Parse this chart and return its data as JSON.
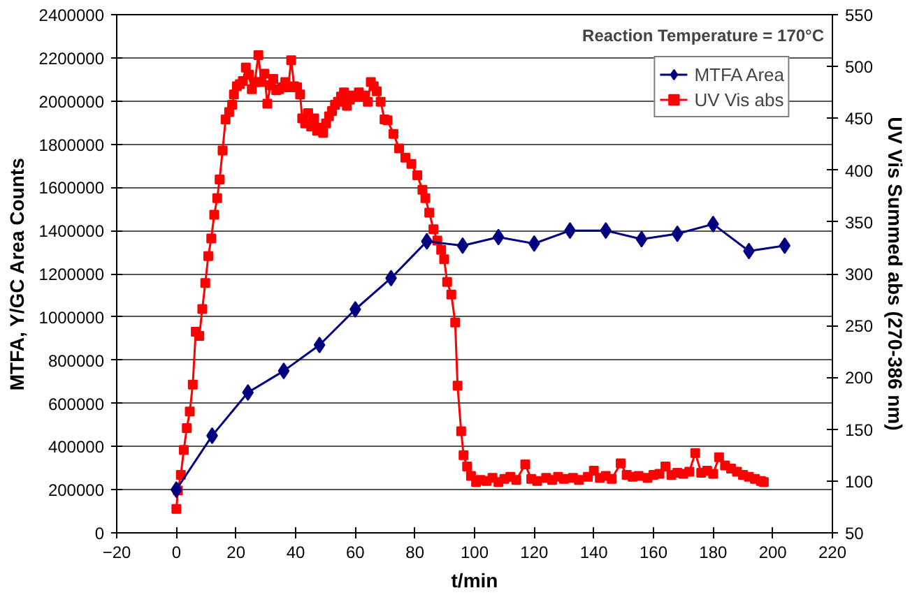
{
  "chart_data": {
    "type": "line",
    "xlabel": "t/min",
    "ylabel": "MTFA, Y/GC Area Counts",
    "y2label": "UV Vis Summed abs (270-386 nm)",
    "annotations": [
      "Reaction Temperature = 170°C"
    ],
    "xlim": [
      -20,
      220
    ],
    "xticks": [
      -20,
      0,
      20,
      40,
      60,
      80,
      100,
      120,
      140,
      160,
      180,
      200,
      220
    ],
    "ylim": [
      0,
      2400000
    ],
    "yticks": [
      0,
      200000,
      400000,
      600000,
      800000,
      1000000,
      1200000,
      1400000,
      1600000,
      1800000,
      2000000,
      2200000,
      2400000
    ],
    "y2lim": [
      50,
      550
    ],
    "y2ticks": [
      50,
      100,
      150,
      200,
      250,
      300,
      350,
      400,
      450,
      500,
      550
    ],
    "grid": "y",
    "legend": "top right",
    "series": [
      {
        "name": "MTFA Area",
        "color": "#000080",
        "marker": "diamond",
        "x": [
          0,
          12,
          24,
          36,
          48,
          60,
          72,
          84,
          96,
          108,
          120,
          132,
          144,
          156,
          168,
          180,
          192,
          204
        ],
        "values": [
          200000,
          450000,
          650000,
          750000,
          870000,
          1035000,
          1180000,
          1350000,
          1330000,
          1370000,
          1340000,
          1400000,
          1400000,
          1360000,
          1385000,
          1430000,
          1305000,
          1330000
        ]
      },
      {
        "name": "UV Vis abs",
        "color": "#ff0000",
        "marker": "square",
        "axis": "y2",
        "x": [
          0,
          0.5,
          1.5,
          2.5,
          3.5,
          4.5,
          5.5,
          6.5,
          7.7,
          8.7,
          9.7,
          10.7,
          11.7,
          12.7,
          13.7,
          14.5,
          15.5,
          16.5,
          17.7,
          18.7,
          19.3,
          20.3,
          21.3,
          22.3,
          23.3,
          24.3,
          25.3,
          26.3,
          27.5,
          28.5,
          29.5,
          30.5,
          31.5,
          32.5,
          33.5,
          34.5,
          35.5,
          36.5,
          37.5,
          38.5,
          39.5,
          40.5,
          41.5,
          42.2,
          43.2,
          44.2,
          45.2,
          46.2,
          47.2,
          48.2,
          49.2,
          50.2,
          51.2,
          52.2,
          53.2,
          54.2,
          55.2,
          56.2,
          57.2,
          58.2,
          59.2,
          60.2,
          61.2,
          62.2,
          63.2,
          64.2,
          65.2,
          66.2,
          67.2,
          68.5,
          69.8,
          70.8,
          72.8,
          74.7,
          76.8,
          78.8,
          80.8,
          82.5,
          83.5,
          84.8,
          86.2,
          87.5,
          88.8,
          89.8,
          90.8,
          92.2,
          93.5,
          94.3,
          95.5,
          96.3,
          97.5,
          98.8,
          100.5,
          102,
          104,
          106,
          108,
          110,
          112,
          114,
          117,
          119,
          121,
          124,
          126,
          128,
          130,
          133,
          135,
          138,
          140,
          142,
          144,
          146,
          149,
          151,
          153,
          155,
          158,
          160,
          162,
          164,
          166,
          168,
          170,
          172,
          174,
          176,
          178,
          180,
          182,
          184,
          186,
          188,
          190,
          192,
          194,
          196,
          197
        ],
        "values": [
          73,
          91,
          106,
          130,
          151,
          167,
          193,
          244,
          240,
          266,
          291,
          317,
          334,
          357,
          373,
          391,
          419,
          449,
          456,
          463,
          473,
          481,
          483,
          486,
          499,
          492,
          478,
          485,
          511,
          485,
          493,
          464,
          482,
          488,
          477,
          478,
          480,
          485,
          480,
          506,
          481,
          480,
          473,
          450,
          445,
          455,
          442,
          450,
          438,
          441,
          436,
          445,
          452,
          457,
          463,
          466,
          471,
          475,
          462,
          468,
          472,
          471,
          475,
          471,
          472,
          466,
          485,
          481,
          476,
          466,
          449,
          448,
          435,
          421,
          412,
          406,
          395,
          381,
          373,
          359,
          343,
          332,
          323,
          314,
          292,
          280,
          253,
          192,
          148,
          125,
          114,
          105,
          99,
          101,
          100,
          103,
          99,
          102,
          104,
          101,
          116,
          102,
          100,
          103,
          101,
          104,
          102,
          103,
          101,
          104,
          110,
          103,
          105,
          102,
          117,
          106,
          104,
          105,
          103,
          106,
          107,
          114,
          106,
          108,
          107,
          109,
          127,
          108,
          110,
          107,
          123,
          115,
          112,
          109,
          106,
          104,
          102,
          100,
          99
        ]
      }
    ]
  }
}
